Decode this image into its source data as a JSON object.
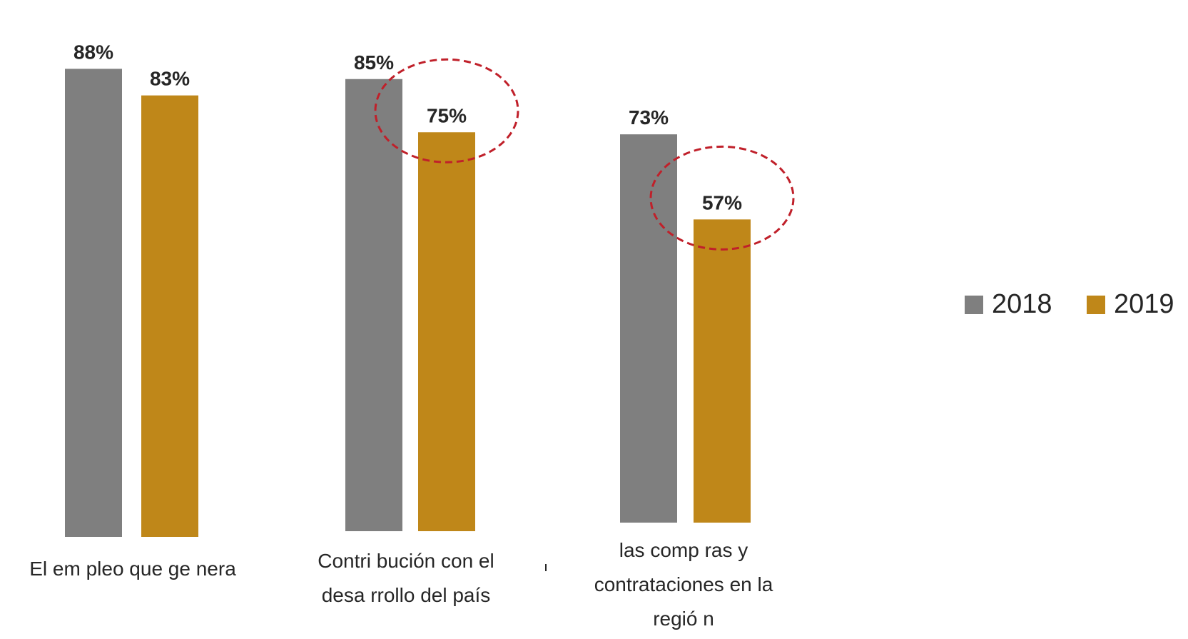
{
  "colors": {
    "s2018": "#7f7f7f",
    "s2019": "#bf8719",
    "highlight": "#c0202a",
    "text": "#262626"
  },
  "chart_data": {
    "type": "bar",
    "categories": [
      [
        "El em pleo que ge nera"
      ],
      [
        "Contri bución con el",
        "desa rrollo del país"
      ],
      [
        "las comp ras y",
        "contrataciones en la",
        "regió n"
      ]
    ],
    "series": [
      {
        "name": "2018",
        "values": [
          88,
          85,
          73
        ],
        "labels": [
          "88%",
          "85%",
          "73%"
        ]
      },
      {
        "name": "2019",
        "values": [
          83,
          75,
          57
        ],
        "labels": [
          "83%",
          "75%",
          "57%"
        ]
      }
    ],
    "highlighted": [
      {
        "category_index": 1,
        "series_index": 1
      },
      {
        "category_index": 2,
        "series_index": 1
      }
    ],
    "ylim": [
      0,
      88
    ],
    "grid": false,
    "axis_visible": false,
    "legend_position": "right",
    "title": "",
    "xlabel": "",
    "ylabel": ""
  }
}
